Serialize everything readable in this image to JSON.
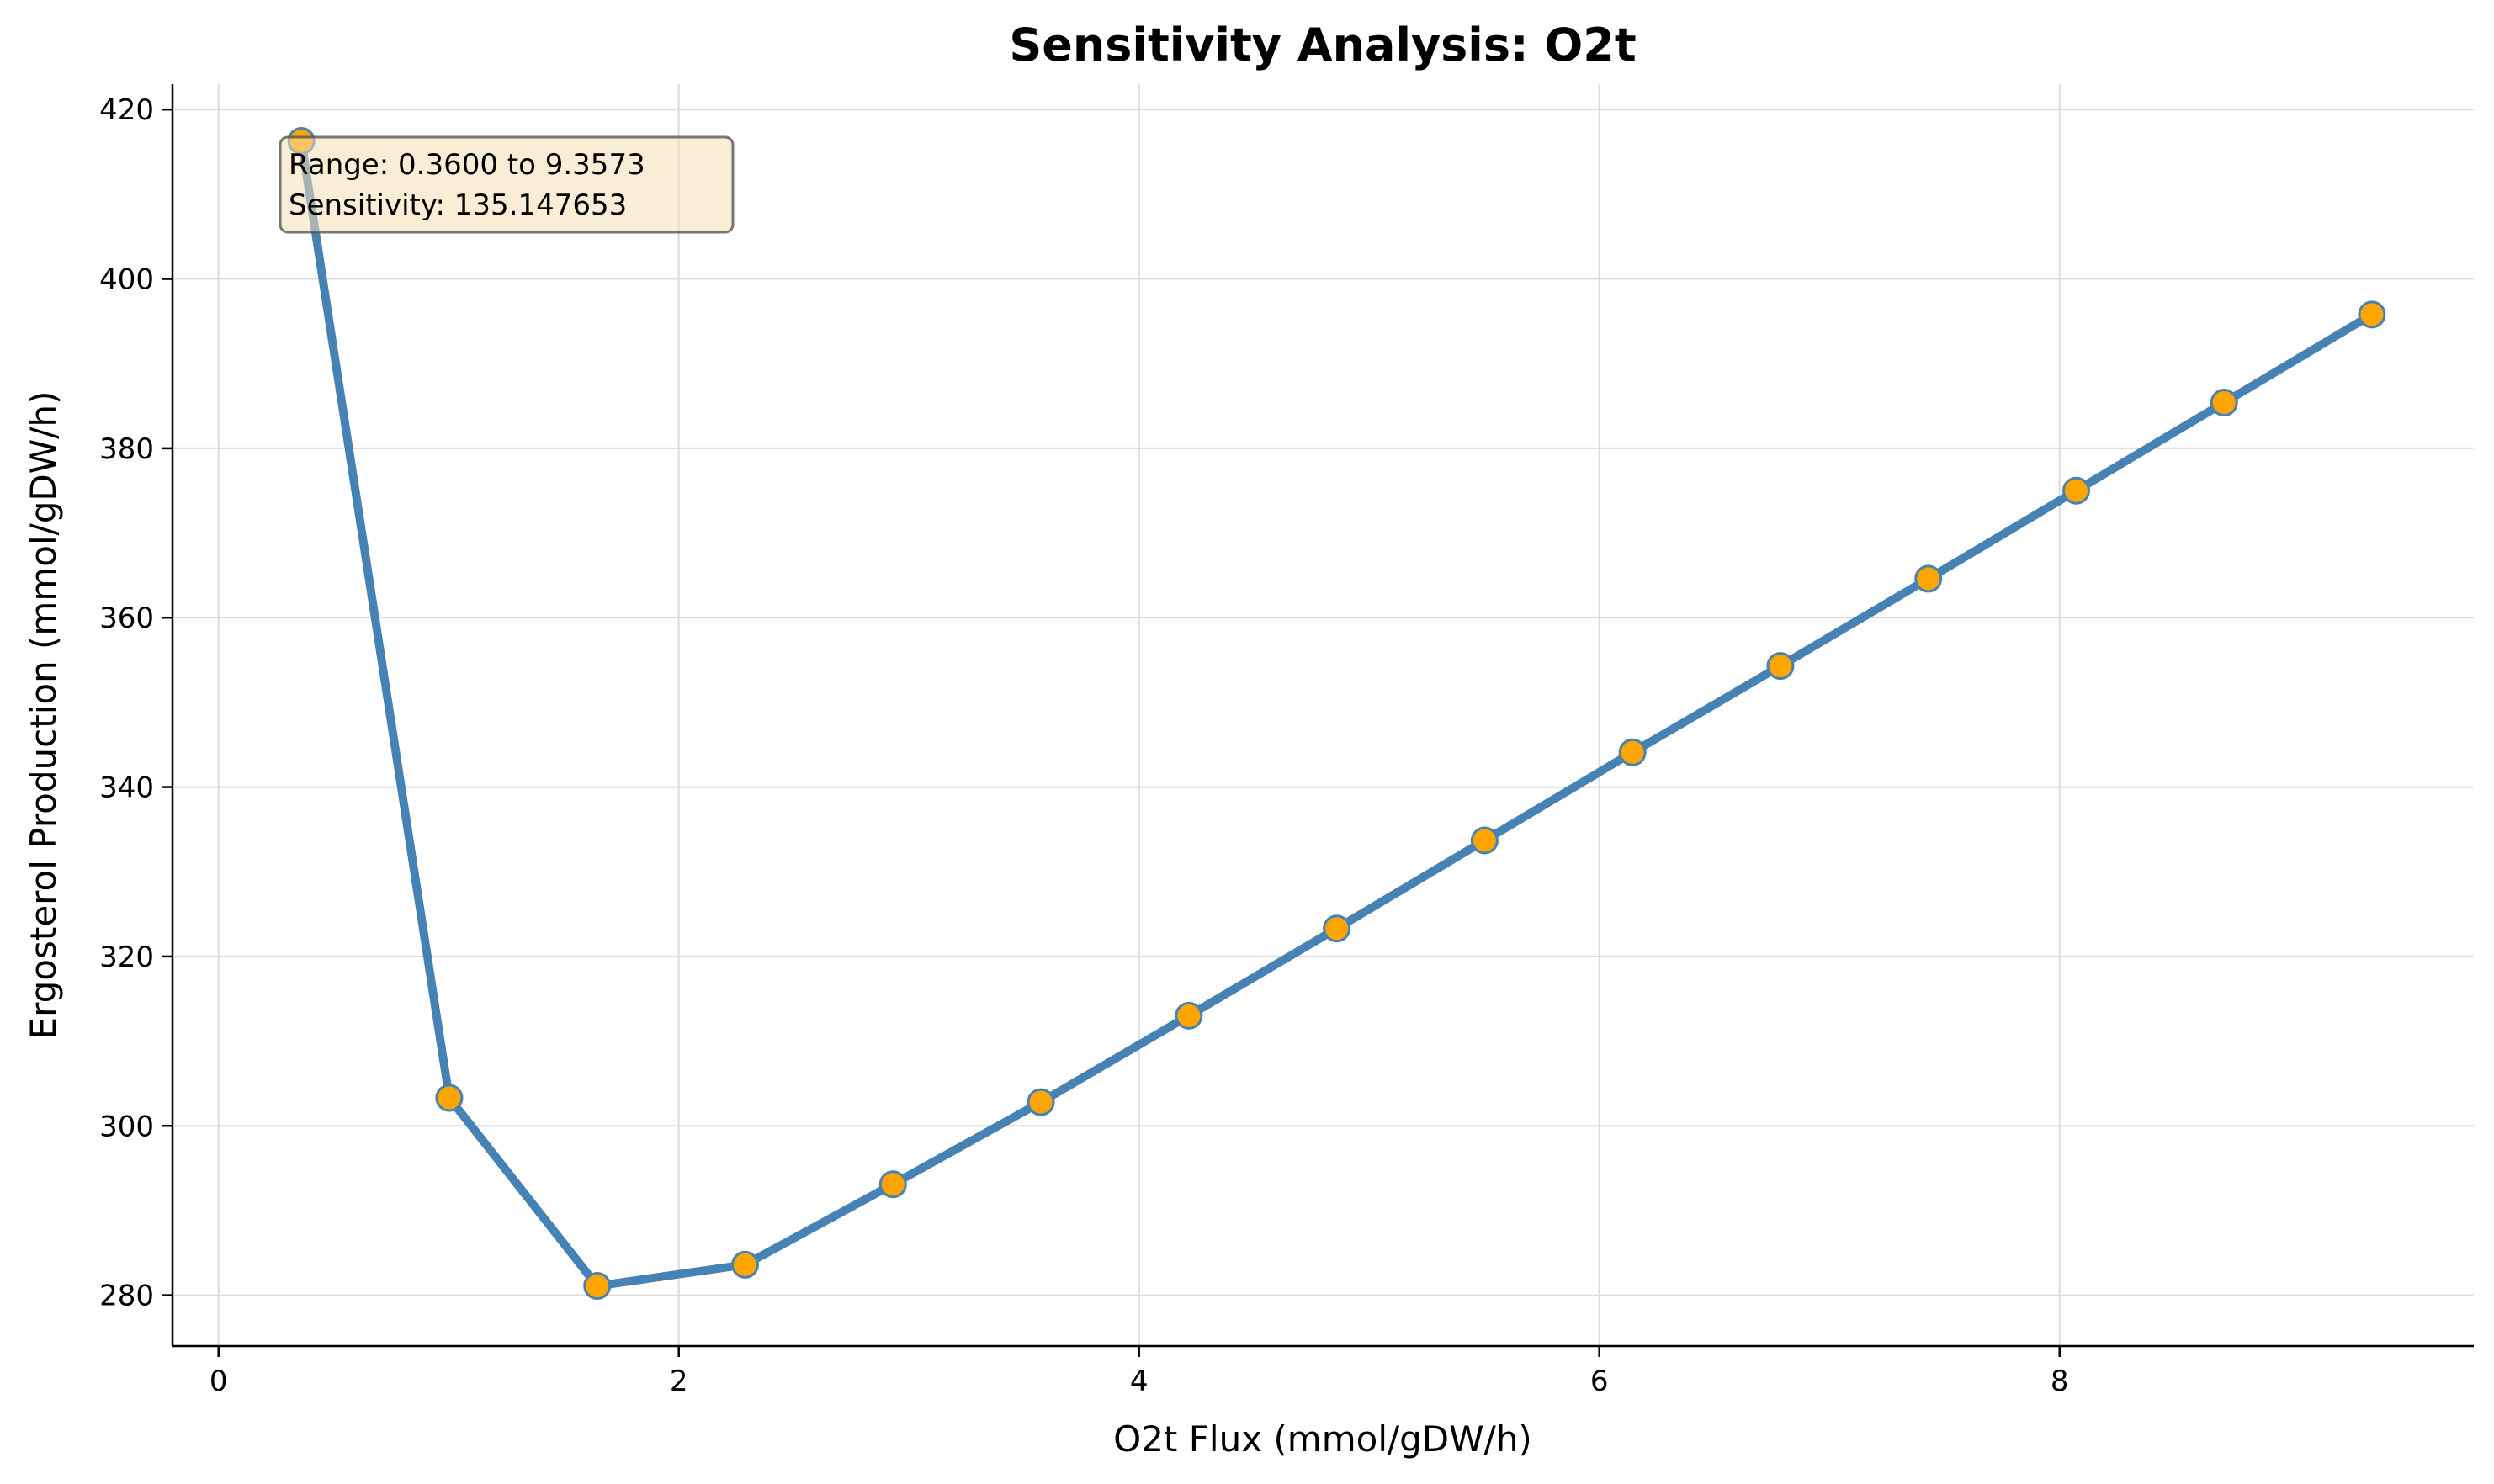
{
  "chart_data": {
    "type": "line",
    "title": "Sensitivity Analysis: O2t",
    "xlabel": "O2t Flux (mmol/gDW/h)",
    "ylabel": "Ergosterol Production (mmol/gDW/h)",
    "xlim": [
      -0.2,
      9.8
    ],
    "ylim": [
      274,
      423
    ],
    "xticks": [
      0,
      2,
      4,
      6,
      8
    ],
    "yticks": [
      280,
      300,
      320,
      340,
      360,
      380,
      400,
      420
    ],
    "grid": true,
    "series": [
      {
        "x": [
          0.36,
          1.0027,
          1.6454,
          2.2881,
          2.9308,
          3.5735,
          4.2162,
          4.8589,
          5.5016,
          6.1443,
          6.787,
          7.4297,
          8.0724,
          8.7151,
          9.3573
        ],
        "values": [
          416.3,
          303.3,
          281.1,
          283.6,
          293.1,
          302.8,
          313.0,
          323.3,
          333.7,
          344.1,
          354.3,
          364.6,
          375.0,
          385.4,
          395.8
        ]
      }
    ],
    "colors": {
      "line": "#4682b4",
      "marker_fill": "#ffa500",
      "marker_edge": "#4682b4",
      "annotation_bg": "#f5deb3"
    },
    "annotation": {
      "line1": "Range: 0.3600 to 9.3573",
      "line2": "Sensitivity: 135.147653"
    }
  }
}
